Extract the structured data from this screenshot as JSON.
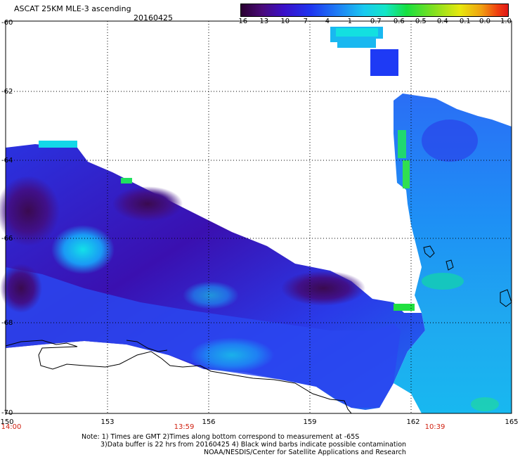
{
  "header": {
    "title": "ASCAT 25KM MLE-3 ascending",
    "date": "20160425"
  },
  "colorbar": {
    "labels": [
      "-16",
      "-13",
      "-10",
      "-7",
      "-4",
      "-1",
      "-0.7",
      "-0.6",
      "-0.5",
      "-0.4",
      "-0.1",
      "0.0",
      "1.0"
    ],
    "colors": [
      "#2a0030",
      "#4a0a7a",
      "#3a10c8",
      "#1f35f0",
      "#1e7cf5",
      "#19c9f0",
      "#13e6c8",
      "#16e040",
      "#80e020",
      "#e8e80e",
      "#f0a010",
      "#f04010",
      "#e01818"
    ]
  },
  "axes": {
    "lat_labels": [
      "-60",
      "-62",
      "-64",
      "-66",
      "-68",
      "-70"
    ],
    "lon_labels": [
      "150",
      "153",
      "156",
      "159",
      "162",
      "165"
    ]
  },
  "times": [
    {
      "label": "14:00",
      "color": "#d02010"
    },
    {
      "label": "13:59",
      "color": "#d02010"
    },
    {
      "label": "10:39",
      "color": "#d02010"
    }
  ],
  "notes": {
    "line1": "Note: 1) Times are GMT 2)Times along bottom correspond to measurement at -65S",
    "line2": "3)Data buffer is 22 hrs from 20160425 4) Black wind barbs indicate possible contamination",
    "line3": "NOAA/NESDIS/Center for Satellite Applications and Research"
  }
}
